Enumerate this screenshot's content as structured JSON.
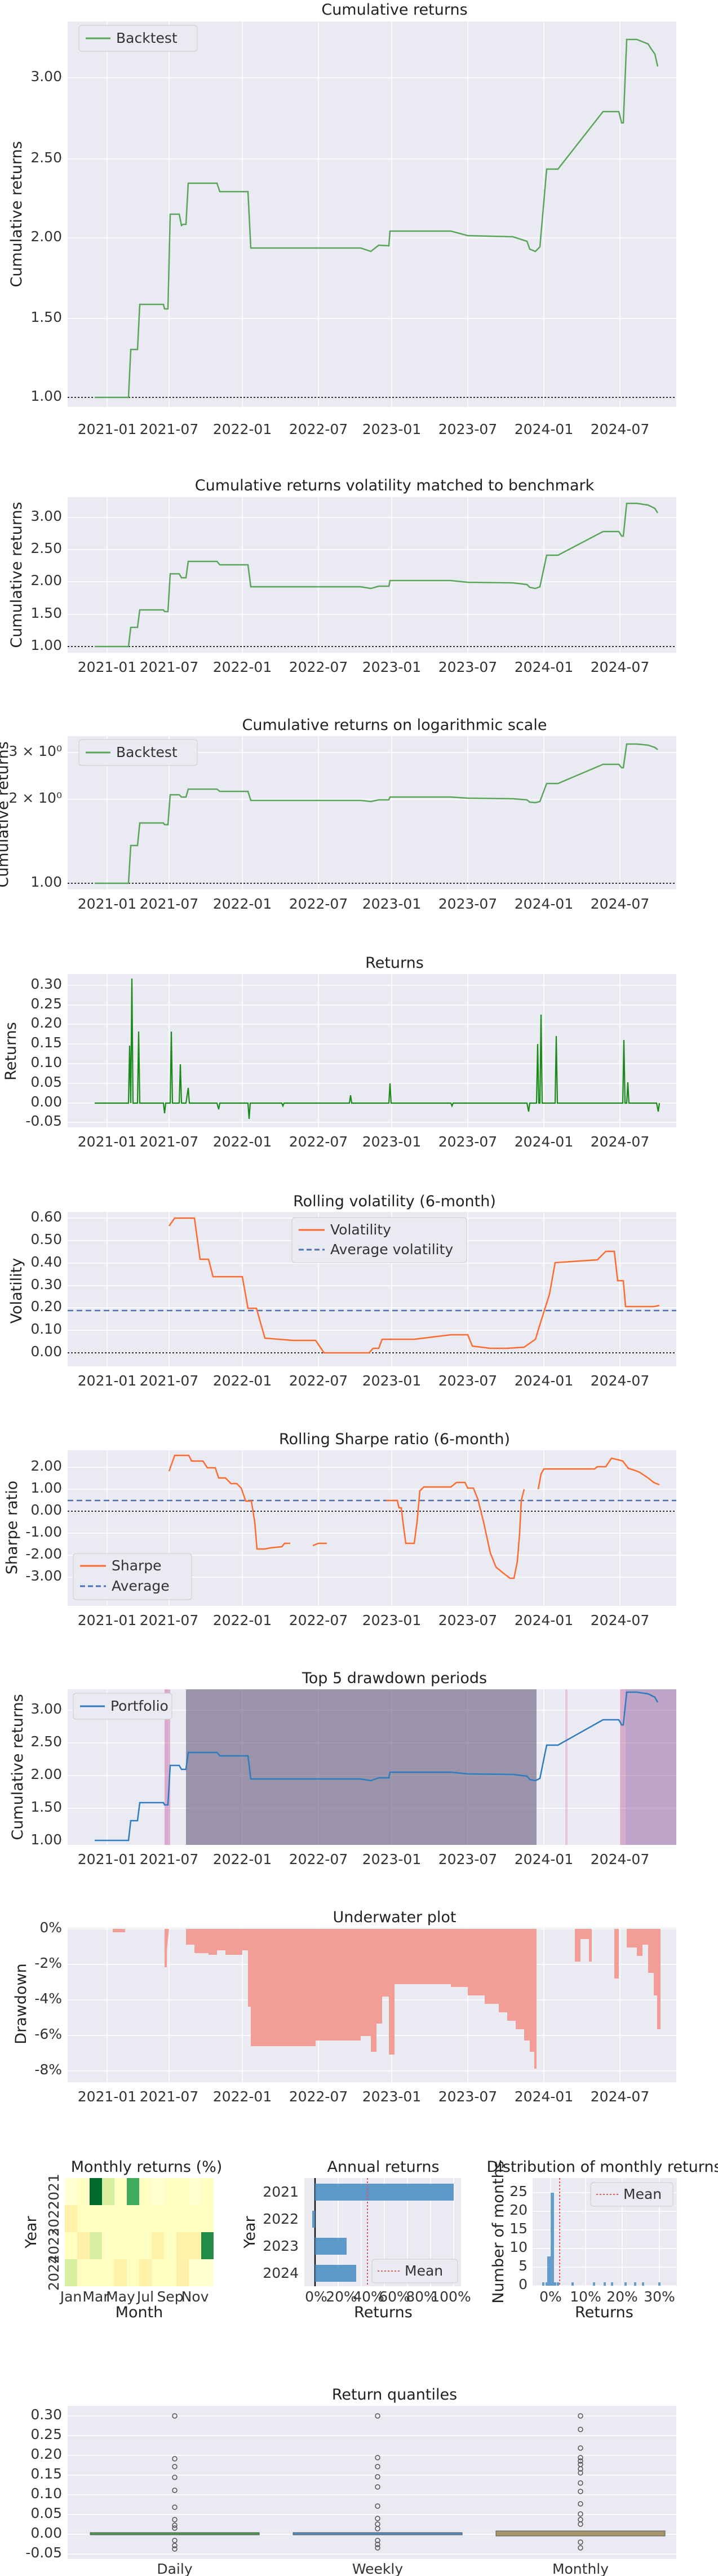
{
  "chart_data": [
    {
      "type": "line",
      "title": "Cumulative returns",
      "ylabel": "Cumulative returns",
      "xticks": [
        "2021-01",
        "2021-07",
        "2022-01",
        "2022-07",
        "2023-01",
        "2023-07",
        "2024-01",
        "2024-07"
      ],
      "yticks": [
        "1.00",
        "1.50",
        "2.00",
        "2.50",
        "3.00"
      ],
      "ylim": [
        0.93,
        3.28
      ],
      "legend": "Backtest",
      "series": [
        {
          "name": "Backtest",
          "color": "#5aa55a",
          "x": [
            "2021-01-01",
            "2021-03-01",
            "2021-03-05",
            "2021-04-20",
            "2021-05-10",
            "2021-05-15",
            "2021-06-30",
            "2021-07-10",
            "2021-09-01",
            "2021-10-01",
            "2021-11-01",
            "2022-01-20",
            "2022-09-01",
            "2022-12-01",
            "2023-01-01",
            "2023-02-01",
            "2023-02-15",
            "2023-09-01",
            "2023-11-01",
            "2023-12-01",
            "2023-12-10",
            "2023-12-20",
            "2024-01-01",
            "2024-03-01",
            "2024-04-10",
            "2024-04-15",
            "2024-05-20",
            "2024-06-01",
            "2024-06-10",
            "2024-07-01",
            "2024-08-01",
            "2024-09-05",
            "2024-09-20"
          ],
          "y": [
            1.0,
            1.0,
            1.3,
            1.57,
            1.57,
            1.52,
            1.52,
            1.84,
            2.07,
            2.05,
            2.02,
            1.93,
            1.93,
            1.93,
            1.91,
            1.93,
            2.02,
            2.0,
            1.97,
            1.94,
            1.92,
            1.98,
            2.36,
            2.77,
            2.77,
            2.7,
            2.75,
            3.05,
            3.23,
            3.2,
            3.16,
            3.1,
            3.05
          ]
        }
      ]
    },
    {
      "type": "line",
      "title": "Cumulative returns volatility matched to benchmark",
      "ylabel": "Cumulative returns",
      "xticks": [
        "2021-01",
        "2021-07",
        "2022-01",
        "2022-07",
        "2023-01",
        "2023-07",
        "2024-01",
        "2024-07"
      ],
      "yticks": [
        "1.00",
        "1.50",
        "2.00",
        "2.50",
        "3.00"
      ],
      "ylim": [
        0.93,
        3.28
      ]
    },
    {
      "type": "line",
      "title": "Cumulative returns on logarithmic scale",
      "ylabel": "Cumulative returns",
      "xticks": [
        "2021-01",
        "2021-07",
        "2022-01",
        "2022-07",
        "2023-01",
        "2023-07",
        "2024-01",
        "2024-07"
      ],
      "yticks": [
        "3 × 10⁰",
        "2 × 10⁰",
        "1.00"
      ],
      "log": true,
      "ylim": [
        0.97,
        3.3
      ],
      "legend": "Backtest"
    },
    {
      "type": "line",
      "title": "Returns",
      "ylabel": "Returns",
      "xticks": [
        "2021-01",
        "2021-07",
        "2022-01",
        "2022-07",
        "2023-01",
        "2023-07",
        "2024-01",
        "2024-07"
      ],
      "yticks": [
        "0.30",
        "0.25",
        "0.20",
        "0.15",
        "0.10",
        "0.05",
        "0.00",
        "-0.05"
      ],
      "ylim": [
        -0.06,
        0.33
      ],
      "series": [
        {
          "name": "Returns",
          "color": "#1a8a1a",
          "x": [
            "2021-03-05",
            "2021-03-10",
            "2021-04-20",
            "2021-05-12",
            "2021-07-05",
            "2021-07-15",
            "2021-10-02",
            "2022-01-20",
            "2022-09-15",
            "2023-02-15",
            "2023-12-20",
            "2024-01-01",
            "2024-01-10",
            "2024-03-01",
            "2024-06-01",
            "2024-06-10"
          ],
          "y": [
            0.15,
            0.32,
            0.18,
            -0.03,
            0.18,
            0.1,
            -0.02,
            -0.04,
            0.02,
            0.05,
            -0.02,
            0.15,
            0.22,
            0.17,
            0.16,
            0.05
          ]
        }
      ]
    },
    {
      "type": "line",
      "title": "Rolling volatility (6-month)",
      "ylabel": "Volatility",
      "xticks": [
        "2021-01",
        "2021-07",
        "2022-01",
        "2022-07",
        "2023-01",
        "2023-07",
        "2024-01",
        "2024-07"
      ],
      "yticks": [
        "0.60",
        "0.50",
        "0.40",
        "0.30",
        "0.20",
        "0.10",
        "0.00"
      ],
      "ylim": [
        -0.02,
        0.66
      ],
      "average": 0.19,
      "legend": [
        "Volatility",
        "Average volatility"
      ],
      "series": [
        {
          "name": "Volatility",
          "color": "#ff6b2e",
          "x": [
            "2021-07-01",
            "2021-07-15",
            "2021-09-01",
            "2021-09-15",
            "2021-11-01",
            "2022-01-01",
            "2022-01-20",
            "2022-03-15",
            "2022-05-01",
            "2022-08-01",
            "2022-09-01",
            "2022-12-01",
            "2023-01-01",
            "2023-02-15",
            "2023-06-01",
            "2023-07-01",
            "2023-09-01",
            "2023-10-01",
            "2023-12-01",
            "2023-12-20",
            "2024-01-01",
            "2024-02-01",
            "2024-06-01",
            "2024-06-15",
            "2024-07-01",
            "2024-08-01",
            "2024-09-20"
          ],
          "y": [
            0.57,
            0.62,
            0.62,
            0.44,
            0.34,
            0.34,
            0.2,
            0.07,
            0.06,
            0.0,
            0.02,
            0.0,
            0.04,
            0.06,
            0.08,
            0.08,
            0.03,
            0.02,
            0.02,
            0.04,
            0.26,
            0.4,
            0.42,
            0.46,
            0.32,
            0.21,
            0.22
          ]
        }
      ]
    },
    {
      "type": "line",
      "title": "Rolling Sharpe ratio (6-month)",
      "ylabel": "Sharpe ratio",
      "xticks": [
        "2021-01",
        "2021-07",
        "2022-01",
        "2022-07",
        "2023-01",
        "2023-07",
        "2024-01",
        "2024-07"
      ],
      "yticks": [
        "2.00",
        "1.00",
        "0.00",
        "-1.00",
        "-2.00",
        "-3.00"
      ],
      "ylim": [
        -3.7,
        2.8
      ],
      "average": 0.5,
      "legend": [
        "Sharpe",
        "Average"
      ]
    },
    {
      "type": "line",
      "title": "Top 5 drawdown periods",
      "ylabel": "Cumulative returns",
      "xticks": [
        "2021-01",
        "2021-07",
        "2022-01",
        "2022-07",
        "2023-01",
        "2023-07",
        "2024-01",
        "2024-07"
      ],
      "yticks": [
        "1.00",
        "1.50",
        "2.00",
        "2.50",
        "3.00"
      ],
      "ylim": [
        0.93,
        3.28
      ],
      "legend": "Portfolio"
    },
    {
      "type": "area",
      "title": "Underwater plot",
      "ylabel": "Drawdown",
      "xticks": [
        "2021-01",
        "2021-07",
        "2022-01",
        "2022-07",
        "2023-01",
        "2023-07",
        "2024-01",
        "2024-07"
      ],
      "yticks": [
        "0%",
        "-2%",
        "-4%",
        "-6%",
        "-8%"
      ],
      "ylim": [
        -0.087,
        0.0
      ]
    },
    {
      "type": "heatmap",
      "title": "Monthly returns (%)",
      "xlabel": "Month",
      "ylabel": "Year",
      "xticks": [
        "Jan",
        "Mar",
        "May",
        "Jul",
        "Sep",
        "Nov"
      ],
      "yticks": [
        "2021",
        "2022",
        "2023",
        "2024"
      ]
    },
    {
      "type": "bar",
      "title": "Annual returns",
      "xlabel": "Returns",
      "ylabel": "Year",
      "categories": [
        "2021",
        "2022",
        "2023",
        "2024"
      ],
      "values": [
        1.0,
        -0.02,
        0.23,
        0.3
      ],
      "mean": 0.38,
      "xticks": [
        "0%",
        "20%",
        "40%",
        "60%",
        "80%",
        "100%"
      ],
      "legend": "Mean"
    },
    {
      "type": "bar",
      "title": "Distribution of monthly returns",
      "xlabel": "Returns",
      "ylabel": "Number of months",
      "xticks": [
        "0%",
        "10%",
        "20%",
        "30%"
      ],
      "yticks": [
        "0",
        "5",
        "10",
        "15",
        "20",
        "25"
      ],
      "mean": 0.025,
      "legend": "Mean"
    },
    {
      "type": "box",
      "title": "Return quantiles",
      "categories": [
        "Daily",
        "Weekly",
        "Monthly"
      ],
      "yticks": [
        "0.30",
        "0.25",
        "0.20",
        "0.15",
        "0.10",
        "0.05",
        "0.00",
        "-0.05"
      ],
      "ylim": [
        -0.06,
        0.33
      ]
    }
  ]
}
